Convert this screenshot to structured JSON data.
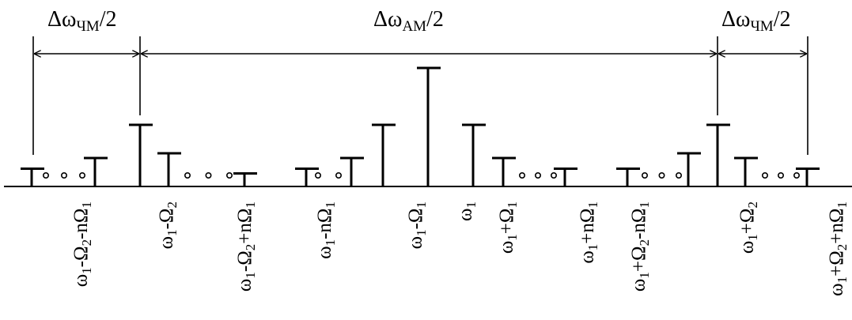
{
  "bandwidths": {
    "fm_left": {
      "base": "Δω",
      "sub": "ЧМ",
      "tail": "/2"
    },
    "am": {
      "base": "Δω",
      "sub": "AM",
      "tail": "/2"
    },
    "fm_right": {
      "base": "Δω",
      "sub": "ЧМ",
      "tail": "/2"
    }
  },
  "lines": [
    {
      "id": "w1-O2-nO1",
      "amplitude": 0.15,
      "label": [
        [
          "ω",
          "1",
          "-Ω",
          "2",
          "-nΩ",
          "1"
        ]
      ]
    },
    {
      "id": "w1-O2-O1",
      "amplitude": 0.24,
      "label": []
    },
    {
      "id": "w1-O2",
      "amplitude": 0.52,
      "label": [
        [
          "ω",
          "1",
          "-Ω",
          "2"
        ]
      ]
    },
    {
      "id": "w1-O2+O1",
      "amplitude": 0.28,
      "label": []
    },
    {
      "id": "w1-O2+nO1",
      "amplitude": 0.11,
      "label": [
        [
          "ω",
          "1",
          "-Ω",
          "2",
          "+nΩ",
          "1"
        ]
      ]
    },
    {
      "id": "w1-nO1",
      "amplitude": 0.15,
      "label": [
        [
          "ω",
          "1",
          "-nΩ",
          "1"
        ]
      ]
    },
    {
      "id": "w1-2O1",
      "amplitude": 0.24,
      "label": []
    },
    {
      "id": "w1-O1",
      "amplitude": 0.52,
      "label": [
        [
          "ω",
          "1",
          "-Ω",
          "1"
        ]
      ]
    },
    {
      "id": "w1",
      "amplitude": 1.0,
      "label": [
        [
          "ω",
          "1"
        ]
      ]
    },
    {
      "id": "w1+O1",
      "amplitude": 0.52,
      "label": [
        [
          "ω",
          "1",
          "+Ω",
          "1"
        ]
      ]
    },
    {
      "id": "w1+2O1",
      "amplitude": 0.24,
      "label": []
    },
    {
      "id": "w1+nO1",
      "amplitude": 0.15,
      "label": [
        [
          "ω",
          "1",
          "+nΩ",
          "1"
        ]
      ]
    },
    {
      "id": "w1+O2-nO1",
      "amplitude": 0.15,
      "label": [
        [
          "ω",
          "1",
          "+Ω",
          "2",
          "-nΩ",
          "1"
        ]
      ]
    },
    {
      "id": "w1+O2-O1",
      "amplitude": 0.28,
      "label": []
    },
    {
      "id": "w1+O2",
      "amplitude": 0.52,
      "label": [
        [
          "ω",
          "1",
          "+Ω",
          "2"
        ]
      ]
    },
    {
      "id": "w1+O2+O1",
      "amplitude": 0.24,
      "label": []
    },
    {
      "id": "w1+O2+nO1",
      "amplitude": 0.15,
      "label": [
        [
          "ω",
          "1",
          "+Ω",
          "2",
          "+nΩ",
          "1"
        ]
      ]
    }
  ],
  "ellipsis_marks": [
    {
      "after": "w1-O2-nO1",
      "count": 3
    },
    {
      "after": "w1-O2+O1",
      "count": 3
    },
    {
      "after": "w1-nO1",
      "count": 2
    },
    {
      "after": "w1+2O1",
      "count": 3
    },
    {
      "after": "w1+nO1",
      "count": 0
    },
    {
      "after": "w1+O2-nO1",
      "count": 3
    },
    {
      "after": "w1+O2+O1",
      "count": 3
    }
  ]
}
